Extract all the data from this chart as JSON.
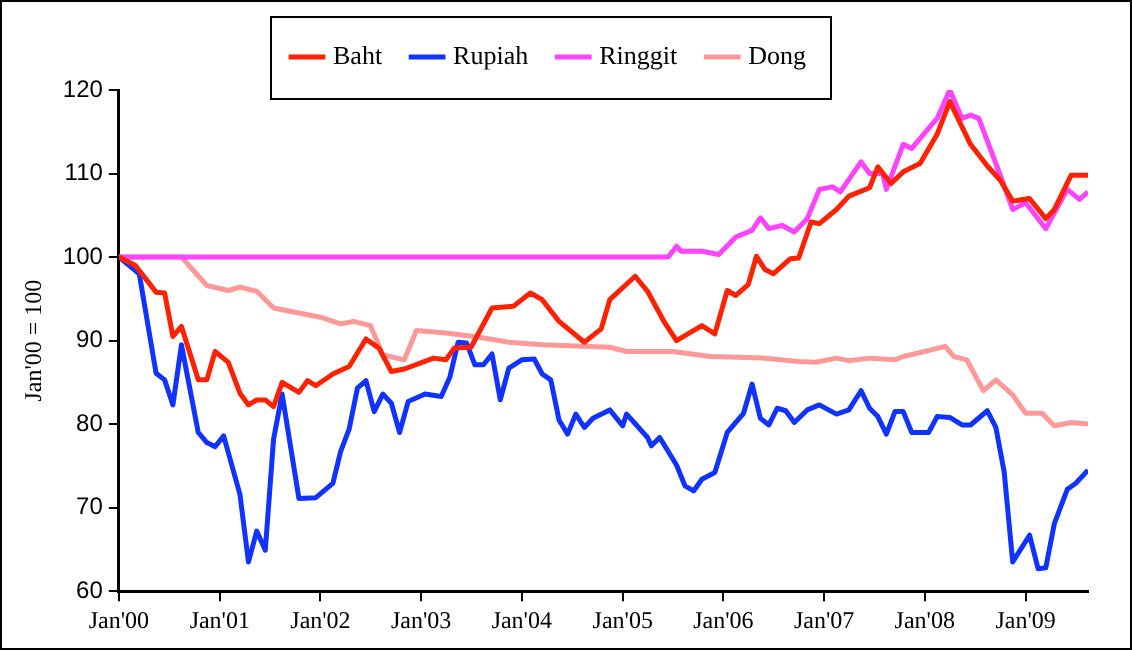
{
  "chart_data": {
    "type": "line",
    "ylabel": "Jan'00 = 100",
    "xlim": [
      "2000-01-01",
      "2009-08-15"
    ],
    "ylim": [
      60,
      120
    ],
    "yticks": [
      60,
      70,
      80,
      90,
      100,
      110,
      120
    ],
    "xticks": [
      {
        "value": "2000-01-01",
        "label": "Jan'00"
      },
      {
        "value": "2001-01-01",
        "label": "Jan'01"
      },
      {
        "value": "2002-01-01",
        "label": "Jan'02"
      },
      {
        "value": "2003-01-01",
        "label": "Jan'03"
      },
      {
        "value": "2004-01-01",
        "label": "Jan'04"
      },
      {
        "value": "2005-01-01",
        "label": "Jan'05"
      },
      {
        "value": "2006-01-01",
        "label": "Jan'06"
      },
      {
        "value": "2007-01-01",
        "label": "Jan'07"
      },
      {
        "value": "2008-01-01",
        "label": "Jan'08"
      },
      {
        "value": "2009-01-01",
        "label": "Jan'09"
      }
    ],
    "grid": false,
    "legend": "top",
    "marker": "none",
    "line_style": "solid",
    "series": [
      {
        "name": "Baht",
        "color": "#ff2200",
        "x": [
          "2000-01-01",
          "2000-03-01",
          "2000-05-15",
          "2000-06-15",
          "2000-07-15",
          "2000-08-15",
          "2000-10-15",
          "2000-11-15",
          "2000-12-15",
          "2001-02-01",
          "2001-03-15",
          "2001-04-15",
          "2001-05-15",
          "2001-06-15",
          "2001-07-15",
          "2001-08-15",
          "2001-10-15",
          "2001-11-15",
          "2001-12-15",
          "2002-02-15",
          "2002-04-15",
          "2002-06-15",
          "2002-08-01",
          "2002-09-15",
          "2002-11-01",
          "2003-02-15",
          "2003-04-01",
          "2003-05-01",
          "2003-07-01",
          "2003-09-15",
          "2003-12-01",
          "2004-02-01",
          "2004-03-15",
          "2004-05-15",
          "2004-08-15",
          "2004-10-15",
          "2004-11-15",
          "2005-02-15",
          "2005-04-01",
          "2005-06-01",
          "2005-07-15",
          "2005-10-15",
          "2005-12-01",
          "2006-01-15",
          "2006-02-15",
          "2006-04-01",
          "2006-05-01",
          "2006-06-01",
          "2006-07-01",
          "2006-09-01",
          "2006-10-01",
          "2006-11-15",
          "2006-12-15",
          "2007-02-15",
          "2007-04-01",
          "2007-06-15",
          "2007-07-15",
          "2007-09-01",
          "2007-10-15",
          "2007-12-15",
          "2008-02-15",
          "2008-04-01",
          "2008-06-15",
          "2008-08-15",
          "2008-10-01",
          "2008-11-15",
          "2009-01-15",
          "2009-03-15",
          "2009-04-15",
          "2009-06-15",
          "2009-08-15"
        ],
        "values": [
          100,
          99,
          95.8,
          95.7,
          90.5,
          91.7,
          85.3,
          85.3,
          88.7,
          87.4,
          83.7,
          82.3,
          82.9,
          82.9,
          82.1,
          85,
          83.8,
          85.2,
          84.6,
          86,
          86.9,
          90.2,
          89.1,
          86.3,
          86.6,
          87.9,
          87.7,
          89.1,
          89.2,
          93.9,
          94.1,
          95.7,
          94.9,
          92.3,
          89.8,
          91.4,
          94.9,
          97.7,
          95.9,
          92.2,
          90,
          91.8,
          90.8,
          96,
          95.4,
          96.7,
          100.1,
          98.5,
          98,
          99.8,
          99.9,
          104.2,
          104,
          105.7,
          107.3,
          108.3,
          110.8,
          108.8,
          110.2,
          111.2,
          114.7,
          118.6,
          113.5,
          110.9,
          109.2,
          106.7,
          107,
          104.6,
          105.7,
          109.8,
          109.8
        ]
      },
      {
        "name": "Rupiah",
        "color": "#1133ff",
        "x": [
          "2000-01-01",
          "2000-03-15",
          "2000-05-15",
          "2000-06-15",
          "2000-07-15",
          "2000-08-15",
          "2000-10-15",
          "2000-11-15",
          "2000-12-15",
          "2001-01-15",
          "2001-03-15",
          "2001-04-15",
          "2001-05-15",
          "2001-06-15",
          "2001-07-15",
          "2001-08-15",
          "2001-10-15",
          "2001-12-15",
          "2002-02-15",
          "2002-03-15",
          "2002-04-15",
          "2002-05-15",
          "2002-06-15",
          "2002-07-15",
          "2002-08-15",
          "2002-09-15",
          "2002-10-15",
          "2002-11-15",
          "2003-01-15",
          "2003-03-15",
          "2003-04-15",
          "2003-05-15",
          "2003-06-15",
          "2003-07-15",
          "2003-08-15",
          "2003-09-15",
          "2003-10-15",
          "2003-11-15",
          "2004-01-01",
          "2004-02-15",
          "2004-03-15",
          "2004-04-15",
          "2004-05-15",
          "2004-06-15",
          "2004-07-15",
          "2004-08-15",
          "2004-09-15",
          "2004-11-15",
          "2005-01-01",
          "2005-01-15",
          "2005-04-01",
          "2005-04-15",
          "2005-05-15",
          "2005-07-15",
          "2005-08-15",
          "2005-09-15",
          "2005-10-15",
          "2005-12-01",
          "2006-01-15",
          "2006-03-15",
          "2006-04-15",
          "2006-05-15",
          "2006-06-15",
          "2006-07-15",
          "2006-08-15",
          "2006-09-15",
          "2006-11-01",
          "2006-12-15",
          "2007-02-15",
          "2007-04-01",
          "2007-05-15",
          "2007-06-15",
          "2007-07-15",
          "2007-08-15",
          "2007-09-15",
          "2007-10-15",
          "2007-11-15",
          "2008-01-15",
          "2008-02-15",
          "2008-04-01",
          "2008-05-15",
          "2008-06-15",
          "2008-08-15",
          "2008-09-15",
          "2008-10-15",
          "2008-11-15",
          "2009-01-15",
          "2009-02-15",
          "2009-03-15",
          "2009-04-15",
          "2009-06-01",
          "2009-07-01",
          "2009-08-15"
        ],
        "values": [
          100,
          98,
          86.1,
          85.3,
          82.3,
          89.5,
          79,
          77.8,
          77.3,
          78.6,
          71.6,
          63.5,
          67.2,
          64.9,
          78.2,
          83.6,
          71.1,
          71.2,
          72.9,
          76.7,
          79.4,
          84.3,
          85.2,
          81.5,
          83.6,
          82.5,
          79,
          82.7,
          83.6,
          83.3,
          85.6,
          89.8,
          89.7,
          87.1,
          87.1,
          88.4,
          82.9,
          86.7,
          87.7,
          87.8,
          86,
          85.3,
          80.5,
          78.8,
          81.2,
          79.6,
          80.7,
          81.7,
          79.8,
          81.2,
          78.4,
          77.4,
          78.4,
          75.1,
          72.6,
          72,
          73.4,
          74.2,
          79,
          81.3,
          84.8,
          80.7,
          79.9,
          81.9,
          81.6,
          80.2,
          81.7,
          82.3,
          81.2,
          81.7,
          84,
          81.9,
          80.9,
          78.8,
          81.5,
          81.5,
          79,
          79,
          80.9,
          80.8,
          79.9,
          79.9,
          81.6,
          79.6,
          74.3,
          63.5,
          66.7,
          62.7,
          62.8,
          68.1,
          72.2,
          72.9,
          74.5
        ]
      },
      {
        "name": "Ringgit",
        "color": "#ff44ff",
        "x": [
          "2000-01-01",
          "2005-06-15",
          "2005-07-15",
          "2005-08-01",
          "2005-10-15",
          "2005-12-15",
          "2006-02-15",
          "2006-04-15",
          "2006-05-15",
          "2006-06-15",
          "2006-08-01",
          "2006-09-15",
          "2006-11-01",
          "2006-12-15",
          "2007-02-01",
          "2007-03-01",
          "2007-05-15",
          "2007-06-15",
          "2007-08-01",
          "2007-08-15",
          "2007-10-15",
          "2007-11-15",
          "2008-01-15",
          "2008-02-15",
          "2008-04-01",
          "2008-05-15",
          "2008-06-15",
          "2008-07-15",
          "2008-09-15",
          "2008-11-15",
          "2009-01-01",
          "2009-03-15",
          "2009-06-01",
          "2009-07-15",
          "2009-08-15"
        ],
        "values": [
          100,
          100,
          101.3,
          100.7,
          100.7,
          100.3,
          102.4,
          103.2,
          104.7,
          103.4,
          103.8,
          103,
          104.6,
          108.1,
          108.4,
          107.8,
          111.4,
          110,
          110,
          108.1,
          113.5,
          113,
          115.4,
          116.6,
          120,
          116.6,
          117,
          116.6,
          111.2,
          105.7,
          106.5,
          103.4,
          108.1,
          106.9,
          107.8
        ]
      },
      {
        "name": "Dong",
        "color": "#ff9999",
        "x": [
          "2000-01-01",
          "2000-08-15",
          "2000-11-15",
          "2001-02-01",
          "2001-03-15",
          "2001-05-15",
          "2001-07-15",
          "2001-10-15",
          "2002-01-01",
          "2002-03-15",
          "2002-05-01",
          "2002-07-01",
          "2002-08-15",
          "2002-11-01",
          "2002-12-15",
          "2003-04-01",
          "2003-08-01",
          "2003-11-15",
          "2004-03-15",
          "2004-11-15",
          "2005-01-15",
          "2005-07-01",
          "2005-11-15",
          "2006-06-01",
          "2006-10-01",
          "2006-12-01",
          "2007-02-15",
          "2007-04-01",
          "2007-06-15",
          "2007-09-15",
          "2007-10-15",
          "2008-01-01",
          "2008-03-15",
          "2008-04-15",
          "2008-06-01",
          "2008-08-01",
          "2008-09-15",
          "2008-11-15",
          "2009-01-01",
          "2009-03-01",
          "2009-04-15",
          "2009-06-15",
          "2009-08-15"
        ],
        "values": [
          100,
          100,
          96.6,
          96,
          96.4,
          95.9,
          93.9,
          93.3,
          92.8,
          92,
          92.3,
          91.8,
          88.3,
          87.7,
          91.2,
          90.9,
          90.4,
          89.8,
          89.5,
          89.2,
          88.7,
          88.7,
          88.1,
          87.9,
          87.5,
          87.4,
          87.9,
          87.6,
          87.9,
          87.7,
          88.1,
          88.7,
          89.3,
          88.1,
          87.7,
          84,
          85.3,
          83.5,
          81.3,
          81.3,
          79.8,
          80.2,
          80
        ]
      }
    ]
  }
}
